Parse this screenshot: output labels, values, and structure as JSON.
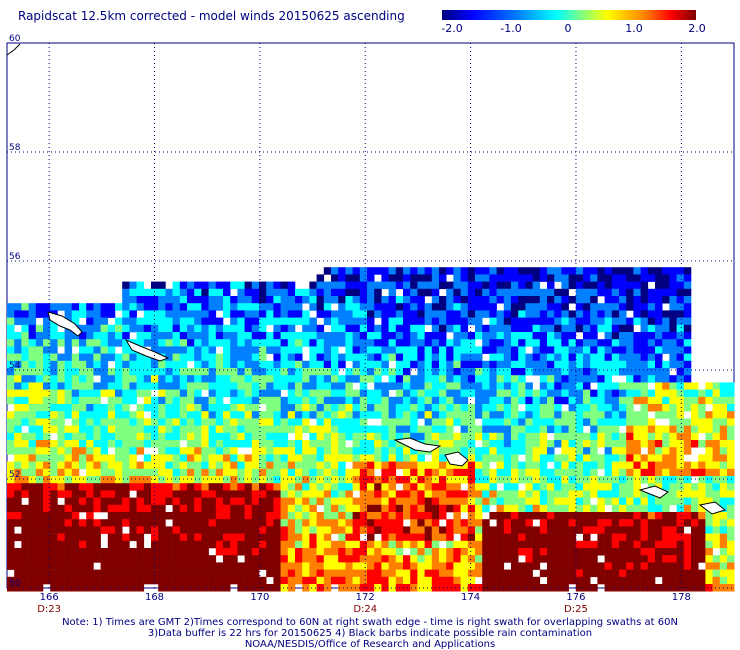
{
  "title": "Rapidscat 12.5km corrected - model winds 20150625 ascending",
  "colorbar": {
    "ticks": [
      "-2.0",
      "-1.0",
      "0",
      "1.0",
      "2.0"
    ],
    "tick_values": [
      -2.0,
      -1.0,
      0.0,
      1.0,
      2.0
    ],
    "range": [
      -2.0,
      2.0
    ],
    "colors": [
      "#000080",
      "#0000ff",
      "#0080ff",
      "#00ffff",
      "#80ff80",
      "#ffff00",
      "#ff8000",
      "#ff0000",
      "#800000"
    ]
  },
  "map": {
    "lon_range": [
      165.2,
      179.0
    ],
    "lat_range": [
      50.0,
      60.0
    ],
    "lon_ticks": [
      "166",
      "168",
      "170",
      "172",
      "174",
      "176",
      "178"
    ],
    "lat_ticks": [
      "60",
      "58",
      "56",
      "54",
      "52",
      "50"
    ],
    "time_labels": [
      {
        "text": "D:23",
        "lon": 166
      },
      {
        "text": "D:24",
        "lon": 172
      },
      {
        "text": "D:25",
        "lon": 176
      }
    ]
  },
  "notes": {
    "line1": "Note: 1) Times are GMT 2)Times correspond to 60N at right swath edge - time is right swath for overlapping swaths at 60N",
    "line2": "3)Data buffer is 22 hrs for 20150625 4) Black barbs indicate possible rain contamination",
    "line3": "NOAA/NESDIS/Office of Research and Applications"
  }
}
